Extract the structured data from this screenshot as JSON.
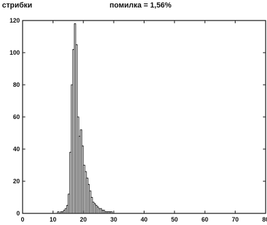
{
  "chart_data": {
    "type": "bar",
    "ylabel": "стрибки",
    "title": "помилка = 1,56%",
    "xlabel": "",
    "xlim": [
      0,
      80
    ],
    "ylim": [
      0,
      120
    ],
    "xticks": [
      "0",
      "10",
      "20",
      "30",
      "40",
      "50",
      "60",
      "70",
      "80"
    ],
    "yticks": [
      "0",
      "20",
      "40",
      "60",
      "80",
      "100",
      "120"
    ],
    "bin_width": 0.5,
    "x": [
      10,
      10.5,
      11,
      11.5,
      12,
      12.5,
      13,
      13.5,
      14,
      14.5,
      15,
      15.5,
      16,
      16.5,
      17,
      17.5,
      18,
      18.5,
      19,
      19.5,
      20,
      20.5,
      21,
      21.5,
      22,
      22.5,
      23,
      23.5,
      24,
      24.5,
      25,
      25.5,
      26,
      26.5,
      27,
      27.5,
      28,
      28.5,
      29,
      29.5,
      30
    ],
    "values": [
      0,
      0,
      0,
      1,
      0,
      1,
      1,
      2,
      3,
      5,
      12,
      38,
      80,
      102,
      118,
      105,
      60,
      48,
      52,
      42,
      30,
      26,
      22,
      18,
      14,
      10,
      7,
      6,
      5,
      4,
      3,
      3,
      2,
      2,
      1,
      1,
      1,
      1,
      1,
      0,
      0
    ],
    "grid": false,
    "legend": "none",
    "colors": {
      "bar_fill": "#ffffff",
      "bar_stroke": "#111111",
      "axis": "#111111"
    }
  }
}
